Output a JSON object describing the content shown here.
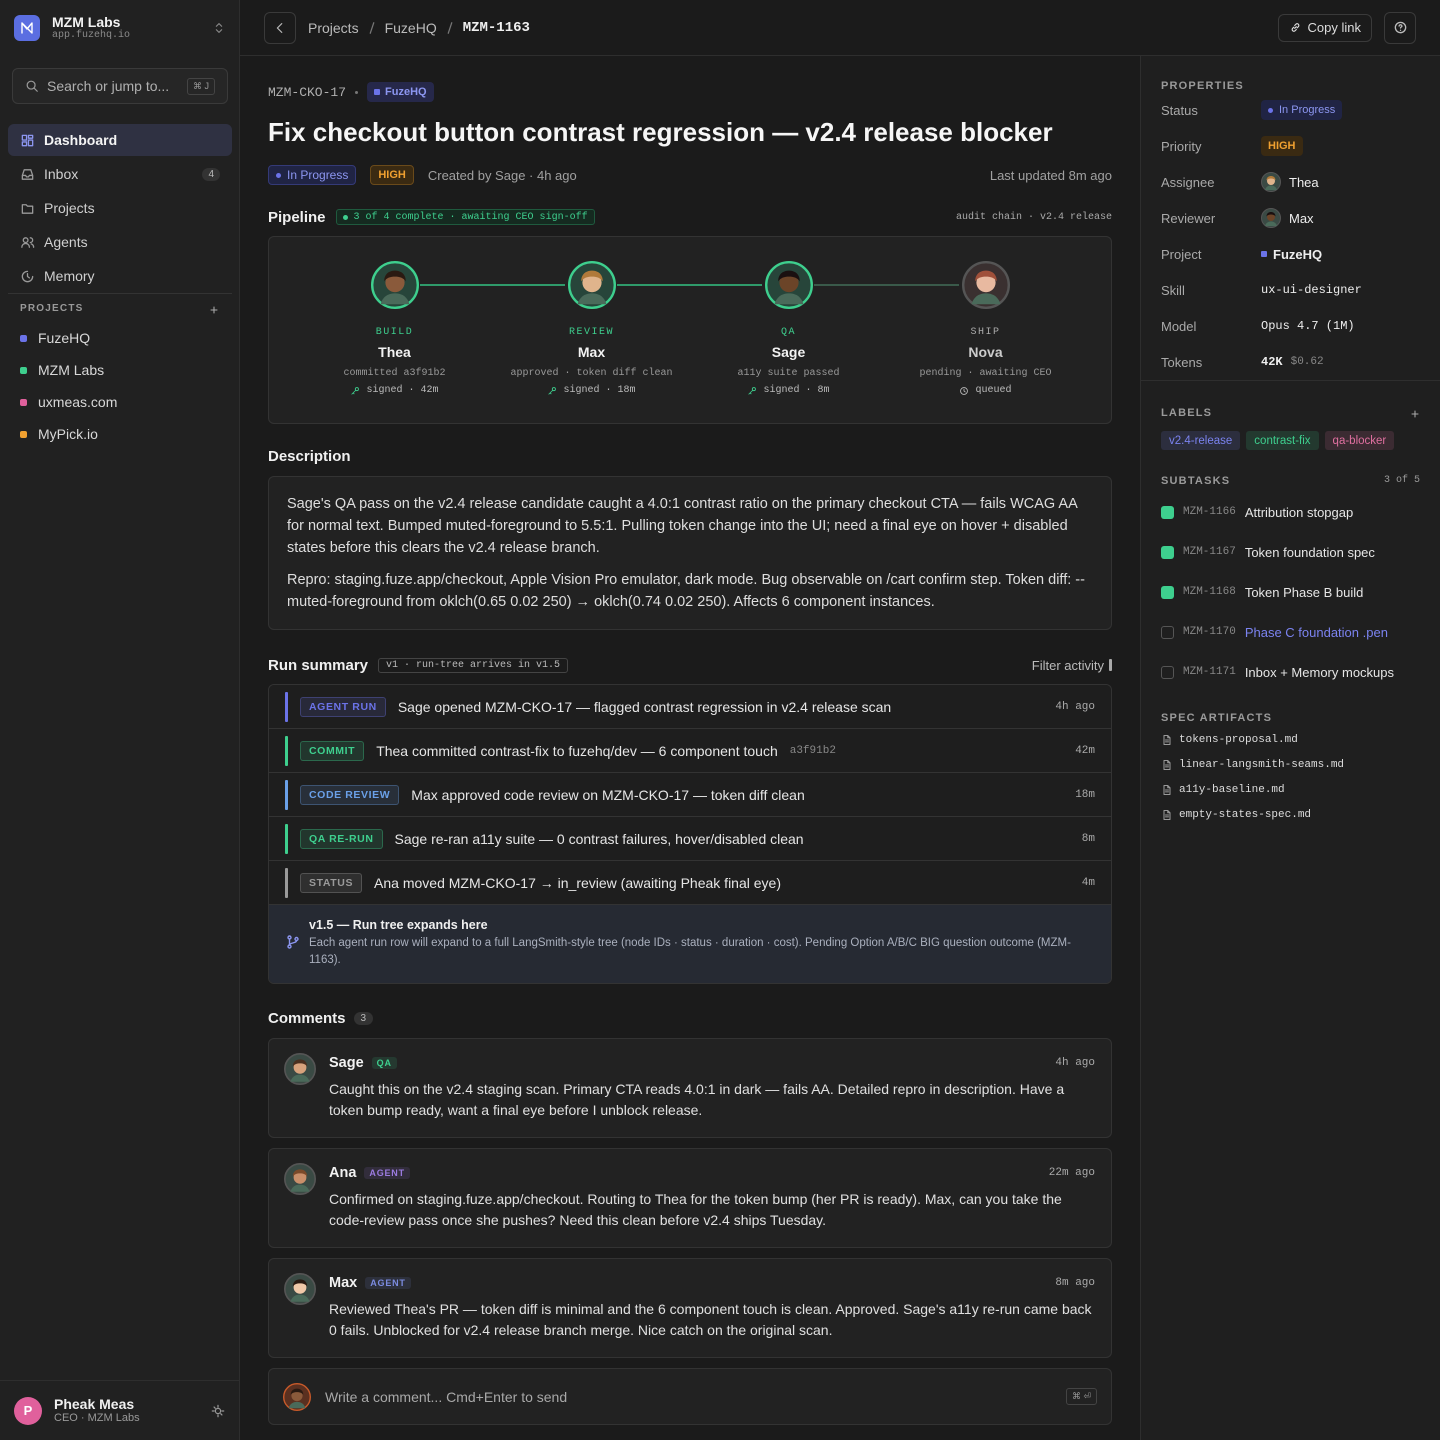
{
  "sidebar": {
    "workspace": {
      "name": "MZM Labs",
      "url": "app.fuzehq.io"
    },
    "search": {
      "placeholder": "Search or jump to...",
      "shortcut": "⌘ J"
    },
    "nav": [
      {
        "label": "Dashboard",
        "active": true
      },
      {
        "label": "Inbox",
        "badge": 4
      },
      {
        "label": "Projects"
      },
      {
        "label": "Agents"
      },
      {
        "label": "Memory"
      }
    ],
    "projects_heading": "PROJECTS",
    "projects": [
      {
        "name": "FuzeHQ",
        "color": "#6b73e8"
      },
      {
        "name": "MZM Labs",
        "color": "#3ecf8e"
      },
      {
        "name": "uxmeas.com",
        "color": "#e0609c"
      },
      {
        "name": "MyPick.io",
        "color": "#f0a030"
      }
    ],
    "user": {
      "initial": "P",
      "name": "Pheak Meas",
      "role": "CEO · MZM Labs"
    }
  },
  "topbar": {
    "breadcrumbs": [
      "Projects",
      "FuzeHQ",
      "MZM-1163"
    ],
    "copy_link": "Copy link"
  },
  "issue": {
    "id": "MZM-CKO-17",
    "project": "FuzeHQ",
    "title": "Fix checkout button contrast regression — v2.4 release blocker",
    "status": "In Progress",
    "priority": "HIGH",
    "created": "Created by Sage · 4h ago",
    "updated": "Last updated 8m ago"
  },
  "pipeline": {
    "title": "Pipeline",
    "badge": "3 of 4 complete · awaiting CEO sign-off",
    "meta": "audit chain · v2.4 release",
    "stages": [
      {
        "stage": "BUILD",
        "name": "Thea",
        "detail": "committed a3f91b2",
        "sign": "signed · 42m",
        "done": true
      },
      {
        "stage": "REVIEW",
        "name": "Max",
        "detail": "approved · token diff clean",
        "sign": "signed · 18m",
        "done": true
      },
      {
        "stage": "QA",
        "name": "Sage",
        "detail": "a11y suite passed",
        "sign": "signed · 8m",
        "done": true
      },
      {
        "stage": "SHIP",
        "name": "Nova",
        "detail": "pending · awaiting CEO",
        "sign": "queued",
        "done": false
      }
    ]
  },
  "description": {
    "title": "Description",
    "paragraphs": [
      "Sage's QA pass on the v2.4 release candidate caught a 4.0:1 contrast ratio on the primary checkout CTA — fails WCAG AA for normal text. Bumped muted-foreground to 5.5:1. Pulling token change into the UI; need a final eye on hover + disabled states before this clears the v2.4 release branch.",
      "Repro: staging.fuze.app/checkout, Apple Vision Pro emulator, dark mode. Bug observable on /cart confirm step. Token diff: --muted-foreground from oklch(0.65 0.02 250) → oklch(0.74 0.02 250). Affects 6 component instances."
    ]
  },
  "run_summary": {
    "title": "Run summary",
    "badge": "v1 · run-tree arrives in v1.5",
    "filter": "Filter activity",
    "rows": [
      {
        "tag": "AGENT RUN",
        "color": "#6b73e8",
        "text": "Sage opened MZM-CKO-17 — flagged contrast regression in v2.4 release scan",
        "time": "4h ago"
      },
      {
        "tag": "COMMIT",
        "color": "#3ecf8e",
        "text": "Thea committed contrast-fix to fuzehq/dev — 6 component touch",
        "hash": "a3f91b2",
        "time": "42m"
      },
      {
        "tag": "CODE REVIEW",
        "color": "#6aa0e8",
        "text": "Max approved code review on MZM-CKO-17 — token diff clean",
        "time": "18m"
      },
      {
        "tag": "QA RE-RUN",
        "color": "#3ecf8e",
        "text": "Sage re-ran a11y suite — 0 contrast failures, hover/disabled clean",
        "time": "8m"
      },
      {
        "tag": "STATUS",
        "color": "#9a9a9a",
        "text": "Ana moved MZM-CKO-17 → in_review (awaiting Pheak final eye)",
        "time": "4m"
      }
    ],
    "note": {
      "title": "v1.5 — Run tree expands here",
      "text": "Each agent run row will expand to a full LangSmith-style tree (node IDs · status · duration · cost). Pending Option A/B/C BIG question outcome (MZM-1163)."
    }
  },
  "comments": {
    "title": "Comments",
    "count": 3,
    "items": [
      {
        "author": "Sage",
        "role": "QA",
        "role_color": "#3ecf8e",
        "time": "4h ago",
        "text": "Caught this on the v2.4 staging scan. Primary CTA reads 4.0:1 in dark — fails AA. Detailed repro in description. Have a token bump ready, want a final eye before I unblock release."
      },
      {
        "author": "Ana",
        "role": "AGENT",
        "role_color": "#9b7be0",
        "time": "22m ago",
        "text": "Confirmed on staging.fuze.app/checkout. Routing to Thea for the token bump (her PR is ready). Max, can you take the code-review pass once she pushes? Need this clean before v2.4 ships Tuesday."
      },
      {
        "author": "Max",
        "role": "AGENT",
        "role_color": "#7b8be0",
        "time": "8m ago",
        "text": "Reviewed Thea's PR — token diff is minimal and the 6 component touch is clean. Approved. Sage's a11y re-run came back 0 fails. Unblocked for v2.4 release branch merge. Nice catch on the original scan."
      }
    ],
    "composer": {
      "placeholder": "Write a comment... Cmd+Enter to send",
      "shortcut": "⌘ ⏎"
    }
  },
  "properties": {
    "heading": "PROPERTIES",
    "rows": [
      {
        "label": "Status",
        "value": "In Progress"
      },
      {
        "label": "Priority",
        "value": "HIGH"
      },
      {
        "label": "Assignee",
        "value": "Thea"
      },
      {
        "label": "Reviewer",
        "value": "Max"
      },
      {
        "label": "Project",
        "value": "FuzeHQ"
      },
      {
        "label": "Skill",
        "value": "ux-ui-designer"
      },
      {
        "label": "Model",
        "value": "Opus 4.7 (1M)"
      },
      {
        "label": "Tokens",
        "value": "42K",
        "extra": "$0.62"
      }
    ]
  },
  "labels": {
    "heading": "LABELS",
    "items": [
      {
        "name": "v2.4-release",
        "color": "#7b83f0"
      },
      {
        "name": "contrast-fix",
        "color": "#3ecf8e"
      },
      {
        "name": "qa-blocker",
        "color": "#e070a0"
      }
    ]
  },
  "subtasks": {
    "heading": "SUBTASKS",
    "count": "3 of 5",
    "items": [
      {
        "id": "MZM-1166",
        "title": "Attribution stopgap",
        "done": true
      },
      {
        "id": "MZM-1167",
        "title": "Token foundation spec",
        "done": true
      },
      {
        "id": "MZM-1168",
        "title": "Token Phase B build",
        "done": true
      },
      {
        "id": "MZM-1170",
        "title": "Phase C foundation .pen",
        "done": false,
        "link": true
      },
      {
        "id": "MZM-1171",
        "title": "Inbox + Memory mockups",
        "done": false
      }
    ]
  },
  "spec_artifacts": {
    "heading": "SPEC ARTIFACTS",
    "files": [
      "tokens-proposal.md",
      "linear-langsmith-seams.md",
      "a11y-baseline.md",
      "empty-states-spec.md"
    ]
  }
}
